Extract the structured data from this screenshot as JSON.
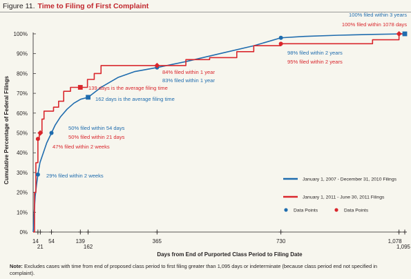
{
  "figure": {
    "label": "Figure 11.",
    "title": "Time to Filing of First Complaint"
  },
  "footnote": {
    "prefix": "Note:",
    "text": "Excludes cases with time from end of proposed class period to first filing greater than 1,095 days or indeterminate (because class period end not specified in complaint)."
  },
  "colors": {
    "series_2007_2010": "#1f6cae",
    "series_2011": "#d9262c",
    "background": "#f7f6ee"
  },
  "chart_data": {
    "type": "line",
    "xlabel": "Days from End of Purported Class Period to Filing Date",
    "ylabel": "Cumulative Percentage of Federal Filings",
    "xlim": [
      0,
      1095
    ],
    "ylim": [
      0,
      100
    ],
    "y_ticks": [
      "0%",
      "10%",
      "20%",
      "30%",
      "40%",
      "50%",
      "60%",
      "70%",
      "80%",
      "90%",
      "100%"
    ],
    "x_ticks": [
      {
        "value": 14,
        "label": "14"
      },
      {
        "value": 21,
        "label": "21"
      },
      {
        "value": 54,
        "label": "54"
      },
      {
        "value": 139,
        "label": "139"
      },
      {
        "value": 162,
        "label": "162"
      },
      {
        "value": 365,
        "label": "365"
      },
      {
        "value": 730,
        "label": "730"
      },
      {
        "value": 1078,
        "label": "1,078"
      },
      {
        "value": 1095,
        "label": "1,095"
      }
    ],
    "grid": false,
    "legend_position": "right",
    "series": [
      {
        "name": "January 1, 2007 - December 31, 2010 Filings",
        "color": "#1f6cae",
        "x": [
          0,
          3,
          6,
          10,
          14,
          20,
          30,
          40,
          54,
          65,
          80,
          100,
          120,
          140,
          162,
          200,
          250,
          300,
          365,
          450,
          550,
          650,
          730,
          800,
          900,
          1000,
          1095
        ],
        "y": [
          0,
          10,
          18,
          24,
          29,
          35,
          40,
          45,
          50,
          54,
          58,
          62,
          65,
          67,
          68,
          73,
          78,
          81,
          83,
          86,
          90,
          94,
          98,
          98.7,
          99.3,
          99.7,
          100
        ]
      },
      {
        "name": "January 1, 2011 - June 30, 2011 Filings",
        "color": "#d9262c",
        "x": [
          0,
          4,
          8,
          14,
          18,
          21,
          26,
          32,
          45,
          60,
          75,
          90,
          110,
          139,
          160,
          180,
          200,
          250,
          300,
          365,
          400,
          450,
          520,
          600,
          650,
          730,
          800,
          900,
          1000,
          1050,
          1078,
          1095
        ],
        "y": [
          0,
          20,
          35,
          47,
          50,
          50,
          57,
          61,
          61,
          63,
          66,
          71,
          73,
          73,
          77,
          80,
          84,
          84,
          84,
          84,
          84,
          87,
          88,
          91,
          94,
          95,
          95,
          95,
          97,
          97,
          100,
          100
        ]
      }
    ],
    "data_points": [
      {
        "series": 0,
        "x": 14,
        "y": 29,
        "marker": "circle"
      },
      {
        "series": 0,
        "x": 54,
        "y": 50,
        "marker": "circle"
      },
      {
        "series": 0,
        "x": 162,
        "y": 68,
        "marker": "square"
      },
      {
        "series": 0,
        "x": 365,
        "y": 83,
        "marker": "circle"
      },
      {
        "series": 0,
        "x": 730,
        "y": 98,
        "marker": "circle"
      },
      {
        "series": 0,
        "x": 1095,
        "y": 100,
        "marker": "square"
      },
      {
        "series": 1,
        "x": 14,
        "y": 47,
        "marker": "circle"
      },
      {
        "series": 1,
        "x": 21,
        "y": 50,
        "marker": "diamond"
      },
      {
        "series": 1,
        "x": 139,
        "y": 73,
        "marker": "square"
      },
      {
        "series": 1,
        "x": 365,
        "y": 84,
        "marker": "diamond"
      },
      {
        "series": 1,
        "x": 730,
        "y": 95,
        "marker": "circle"
      },
      {
        "series": 1,
        "x": 1078,
        "y": 100,
        "marker": "diamond"
      }
    ],
    "annotations": [
      {
        "text": "100% filed within 3 years",
        "series": 0
      },
      {
        "text": "100% filed within 1078 days",
        "series": 1
      },
      {
        "text": "98% filed within 2 years",
        "series": 0
      },
      {
        "text": "95% filed within 2 years",
        "series": 1
      },
      {
        "text": "84% filed within 1 year",
        "series": 1
      },
      {
        "text": "83% filed within 1 year",
        "series": 0
      },
      {
        "text": "139 days is the average filing time",
        "series": 1
      },
      {
        "text": "162 days is the average filing time",
        "series": 0
      },
      {
        "text": "50% filed within 54 days",
        "series": 0
      },
      {
        "text": "50% filed within 21 days",
        "series": 1
      },
      {
        "text": "47% filed within 2 weeks",
        "series": 1
      },
      {
        "text": "29% filed within 2 weeks",
        "series": 0
      }
    ],
    "legend": [
      {
        "label": "January 1, 2007 - December 31, 2010 Filings",
        "kind": "line",
        "series": 0
      },
      {
        "label": "January 1, 2011 - June 30, 2011 Filings",
        "kind": "line",
        "series": 1
      },
      {
        "label": "Data Points",
        "kind": "dot",
        "series": 0
      },
      {
        "label": "Data Points",
        "kind": "dot",
        "series": 1
      }
    ]
  }
}
